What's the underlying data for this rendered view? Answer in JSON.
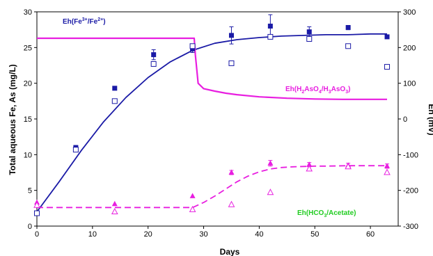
{
  "chart_data": {
    "type": "scatter",
    "xlabel": "Days",
    "ylabel": "Total aqueous Fe, As (mg/L)",
    "y2label": "Eh (mV)",
    "xlim": [
      0,
      65
    ],
    "ylim": [
      0,
      30
    ],
    "y2lim": [
      -300,
      300
    ],
    "xticks": [
      "0",
      "10",
      "20",
      "30",
      "40",
      "50",
      "60"
    ],
    "yticks": [
      "0",
      "5",
      "10",
      "15",
      "20",
      "25",
      "30"
    ],
    "y2ticks": [
      "-300",
      "-200",
      "-100",
      "0",
      "100",
      "200",
      "300"
    ],
    "grid": false,
    "colors": {
      "fe": "#1a1aa6",
      "as": "#e81ee0",
      "acetate_label": "#22cc22"
    },
    "annotations": {
      "fe": {
        "main": "Eh(Fe",
        "sup1": "3+",
        "mid": "/Fe",
        "sup2": "2+",
        "end": ")"
      },
      "as": {
        "main": "Eh(H",
        "sub1": "2",
        "mid1": "AsO",
        "sub2": "4",
        "mid2": "/H",
        "sub3": "3",
        "mid3": "AsO",
        "sub4": "3",
        "end": ")"
      },
      "acetate": {
        "main": "Eh(HCO",
        "sub1": "3",
        "end": "/Acetate)"
      }
    },
    "series": [
      {
        "marker": "filled-square",
        "color": "#1a1aa6",
        "x": [
          0,
          7,
          14,
          21,
          28,
          35,
          42,
          49,
          56,
          63
        ],
        "y": [
          1.8,
          11.0,
          19.3,
          24.0,
          24.8,
          26.7,
          28.0,
          27.2,
          27.8,
          26.5
        ],
        "err": [
          0,
          0.3,
          0,
          0.7,
          0.5,
          1.2,
          1.6,
          0.7,
          0.3,
          0
        ]
      },
      {
        "marker": "open-square",
        "color": "#1a1aa6",
        "x": [
          0,
          7,
          14,
          21,
          28,
          35,
          42,
          49,
          56,
          63
        ],
        "y": [
          1.8,
          10.7,
          17.5,
          22.7,
          25.2,
          22.8,
          26.5,
          26.2,
          25.2,
          22.3
        ]
      },
      {
        "marker": "filled-triangle",
        "color": "#e81ee0",
        "x": [
          0,
          14,
          28,
          35,
          42,
          49,
          56,
          63
        ],
        "y": [
          3.3,
          3.1,
          4.2,
          7.5,
          8.8,
          8.6,
          8.5,
          8.4
        ],
        "err": [
          0,
          0,
          0,
          0.3,
          0.4,
          0.3,
          0.3,
          0.3
        ]
      },
      {
        "marker": "open-triangle",
        "color": "#e81ee0",
        "x": [
          0,
          14,
          28,
          35,
          42,
          49,
          56,
          63
        ],
        "y": [
          2.9,
          2.0,
          2.3,
          3.0,
          4.7,
          8.0,
          8.3,
          7.5
        ]
      },
      {
        "marker": "line",
        "color": "#1a1aa6",
        "dash": false,
        "x": [
          0,
          4,
          8,
          12,
          16,
          20,
          24,
          28,
          32,
          36,
          40,
          44,
          48,
          52,
          56,
          60,
          63
        ],
        "y": [
          2.0,
          6.2,
          10.6,
          14.6,
          18.0,
          20.8,
          23.0,
          24.6,
          25.6,
          26.1,
          26.4,
          26.6,
          26.7,
          26.8,
          26.8,
          26.9,
          26.9
        ]
      },
      {
        "marker": "line",
        "color": "#e81ee0",
        "dash": true,
        "x": [
          0,
          28,
          30,
          32,
          34,
          36,
          38,
          40,
          42,
          44,
          46,
          48,
          50,
          52,
          56,
          60,
          63
        ],
        "y": [
          2.6,
          2.6,
          3.3,
          4.2,
          5.2,
          6.2,
          7.0,
          7.6,
          8.0,
          8.2,
          8.3,
          8.35,
          8.4,
          8.4,
          8.45,
          8.45,
          8.45
        ]
      },
      {
        "marker": "line",
        "color": "#e81ee0",
        "dash": false,
        "axis": "y2",
        "x": [
          0,
          28.3,
          28.5,
          29,
          30,
          32,
          34,
          36,
          40,
          45,
          50,
          55,
          60,
          63
        ],
        "y": [
          226,
          226,
          180,
          100,
          85,
          78,
          72,
          68,
          62,
          58,
          56,
          55,
          55,
          55
        ]
      }
    ]
  }
}
